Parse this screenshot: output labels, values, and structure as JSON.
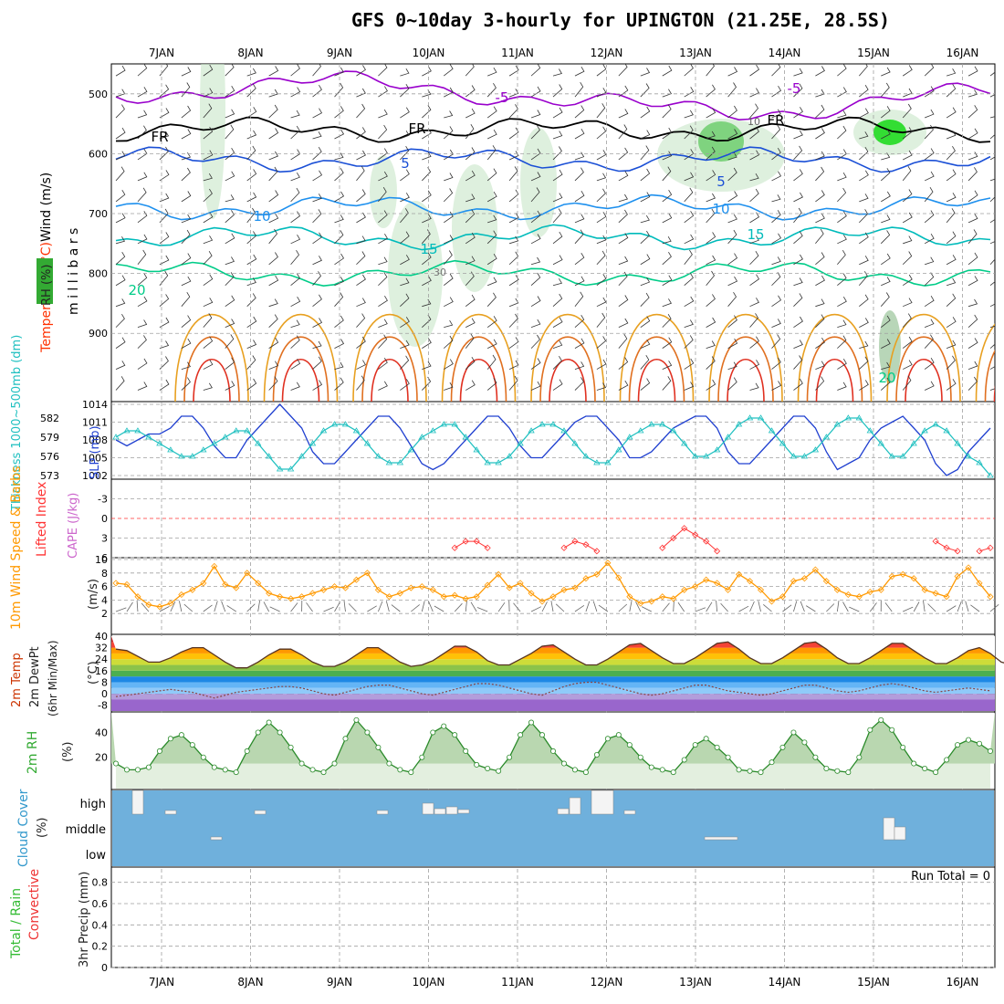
{
  "title": "GFS 0~10day 3-hourly for UPINGTON (21.25E, 28.5S)",
  "colors": {
    "grid": "#a0a0a0",
    "wind": "#000000",
    "temp": "#ff3000",
    "rh": "#33cc33",
    "thickness": "#20c0c0",
    "slp": "#2040d0",
    "cape": "#cc66cc",
    "li": "#ff3333",
    "wind10": "#ff9900",
    "cloud": "#6fb0dc",
    "total": "#33bb33",
    "convective": "#ee3333"
  },
  "chart_data": [
    {
      "id": "upper_air",
      "type": "contour",
      "ylabels": [
        {
          "text": "Wind (m/s)",
          "color": "#000000"
        },
        {
          "text": "Temperature (°C)",
          "color": "#ff3000"
        },
        {
          "text": "m i l l i b a r s",
          "color": "#000000"
        },
        {
          "text": "RH (%)",
          "color": "#33aa33"
        }
      ],
      "yticks": [
        500,
        600,
        700,
        800,
        900
      ],
      "dates": [
        "7JAN",
        "8JAN",
        "9JAN",
        "10JAN",
        "11JAN",
        "12JAN",
        "13JAN",
        "14JAN",
        "15JAN",
        "16JAN"
      ],
      "labels": [
        "-5",
        "-5",
        "FR",
        "FR",
        "FR",
        "10",
        "5",
        "5",
        "10",
        "10",
        "15",
        "15",
        "20",
        "20",
        "30"
      ],
      "isotherm_levels": [
        {
          "label": "-5",
          "p": 505,
          "color": "#9900cc"
        },
        {
          "label": "FR",
          "p": 560,
          "color": "#000000"
        },
        {
          "label": "5",
          "p": 610,
          "color": "#1a4fd6"
        },
        {
          "label": "10",
          "p": 690,
          "color": "#1e90ee"
        },
        {
          "label": "15",
          "p": 740,
          "color": "#00bbbb"
        },
        {
          "label": "20",
          "p": 800,
          "color": "#00cc88"
        }
      ]
    },
    {
      "id": "slp_thickness",
      "type": "line",
      "ylabel_left": "Thickness 1000~500mb (dm)",
      "ylabel_right": "SLP (mb)",
      "yticks_thickness": [
        "582",
        "579",
        "576",
        "573"
      ],
      "yticks_slp": [
        "1014",
        "1011",
        "1008",
        "1005",
        "1002"
      ],
      "series": [
        {
          "name": "SLP (mb)",
          "values": [
            1008,
            1007,
            1008,
            1009,
            1009,
            1010,
            1012,
            1012,
            1010,
            1007,
            1005,
            1005,
            1008,
            1010,
            1012,
            1014,
            1012,
            1010,
            1006,
            1004,
            1004,
            1006,
            1008,
            1010,
            1012,
            1012,
            1010,
            1007,
            1004,
            1003,
            1004,
            1006,
            1008,
            1010,
            1012,
            1012,
            1010,
            1007,
            1005,
            1005,
            1007,
            1009,
            1011,
            1012,
            1012,
            1010,
            1008,
            1005,
            1005,
            1006,
            1008,
            1010,
            1011,
            1012,
            1012,
            1010,
            1006,
            1004,
            1004,
            1006,
            1008,
            1010,
            1012,
            1012,
            1010,
            1006,
            1003,
            1004,
            1005,
            1008,
            1010,
            1011,
            1012,
            1010,
            1008,
            1004,
            1002,
            1003,
            1006,
            1008,
            1010
          ]
        },
        {
          "name": "Thickness (dm)",
          "values": [
            579,
            580,
            580,
            579,
            578,
            577,
            576,
            576,
            577,
            578,
            579,
            580,
            580,
            578,
            576,
            574,
            574,
            576,
            578,
            580,
            581,
            581,
            580,
            578,
            576,
            575,
            575,
            577,
            579,
            580,
            581,
            581,
            579,
            577,
            575,
            575,
            576,
            578,
            580,
            581,
            581,
            580,
            578,
            576,
            575,
            575,
            577,
            579,
            580,
            581,
            581,
            580,
            578,
            576,
            576,
            577,
            579,
            581,
            582,
            582,
            580,
            578,
            576,
            576,
            577,
            579,
            581,
            582,
            582,
            580,
            578,
            576,
            576,
            578,
            580,
            581,
            580,
            578,
            576,
            575,
            573
          ]
        }
      ]
    },
    {
      "id": "cape_li",
      "type": "line",
      "ylabel_left": "Lifted Index",
      "ylabel_right": "CAPE (J/kg)",
      "yticks": [
        "-3",
        "0",
        "3",
        "6"
      ],
      "series": [
        {
          "name": "Lifted Index",
          "values": [
            null,
            null,
            null,
            null,
            null,
            null,
            null,
            null,
            null,
            null,
            null,
            null,
            null,
            null,
            null,
            null,
            null,
            null,
            null,
            null,
            null,
            null,
            null,
            null,
            null,
            null,
            null,
            null,
            null,
            null,
            null,
            4.5,
            3.5,
            3.5,
            4.5,
            null,
            null,
            null,
            null,
            null,
            null,
            4.5,
            3.5,
            4,
            5,
            null,
            null,
            null,
            null,
            null,
            4.5,
            3,
            1.5,
            2.5,
            3.5,
            5,
            null,
            null,
            null,
            null,
            null,
            null,
            null,
            null,
            null,
            null,
            null,
            null,
            null,
            null,
            null,
            null,
            null,
            null,
            null,
            3.5,
            4.5,
            5,
            null,
            5,
            4.5
          ]
        }
      ]
    },
    {
      "id": "wind10m",
      "type": "line",
      "ylabel_left": "10m Wind Speed & Barbs",
      "ylabel_right": "(m/s)",
      "yticks": [
        "10",
        "8",
        "6",
        "4",
        "2"
      ],
      "series": [
        {
          "name": "10m Wind Speed",
          "values": [
            6.5,
            6.3,
            4.5,
            3.3,
            3,
            3.5,
            4.8,
            5.5,
            6.5,
            9,
            6.3,
            5.8,
            8,
            6.5,
            5,
            4.5,
            4.2,
            4.5,
            5,
            5.5,
            6,
            5.8,
            7,
            8,
            5.5,
            4.5,
            5,
            5.8,
            6,
            5.5,
            4.5,
            4.7,
            4.2,
            4.5,
            6.2,
            7.8,
            5.8,
            6.5,
            5,
            3.8,
            4.5,
            5.5,
            5.8,
            7.2,
            7.8,
            9.5,
            7.3,
            4.5,
            3.5,
            3.8,
            4.5,
            4.2,
            5.5,
            6,
            7,
            6.5,
            5.5,
            7.8,
            6.8,
            5.5,
            3.8,
            4.5,
            6.8,
            7.2,
            8.5,
            6.8,
            5.5,
            4.8,
            4.5,
            5.2,
            5.5,
            7.5,
            7.8,
            7.2,
            5.5,
            5,
            4.5,
            7.5,
            8.8,
            6.5,
            4.5
          ]
        }
      ]
    },
    {
      "id": "temp2m",
      "type": "area",
      "ylabel": "2m Temp 2m DewPt (6hr Min/Max) (°C)",
      "yticks": [
        "40",
        "32",
        "24",
        "16",
        "8",
        "0",
        "-8"
      ],
      "series": [
        {
          "name": "2m Temp",
          "values": [
            31,
            30,
            26,
            22,
            22,
            25,
            29,
            32,
            32,
            27,
            22,
            18,
            18,
            22,
            27,
            31,
            31,
            27,
            22,
            19,
            19,
            22,
            27,
            32,
            32,
            27,
            22,
            19,
            20,
            23,
            28,
            33,
            33,
            29,
            23,
            20,
            20,
            24,
            28,
            33,
            34,
            29,
            24,
            20,
            20,
            24,
            29,
            34,
            35,
            30,
            25,
            21,
            21,
            25,
            30,
            35,
            36,
            31,
            25,
            21,
            21,
            25,
            30,
            35,
            36,
            31,
            25,
            21,
            21,
            25,
            30,
            35,
            35,
            30,
            25,
            21,
            21,
            25,
            30,
            32,
            28,
            22,
            20
          ]
        },
        {
          "name": "2m DewPt",
          "values": [
            -2,
            -1,
            0,
            1,
            2,
            3,
            2,
            1,
            -1,
            -3,
            -1,
            1,
            2,
            3,
            4,
            5,
            5,
            4,
            2,
            0,
            -1,
            1,
            3,
            5,
            6,
            6,
            4,
            2,
            0,
            -1,
            1,
            3,
            5,
            7,
            7,
            6,
            4,
            2,
            0,
            -1,
            2,
            5,
            7,
            8,
            8,
            6,
            4,
            2,
            0,
            -1,
            0,
            2,
            4,
            6,
            6,
            4,
            2,
            1,
            0,
            -1,
            0,
            2,
            4,
            6,
            6,
            4,
            2,
            1,
            2,
            4,
            6,
            7,
            6,
            4,
            2,
            1,
            2,
            3,
            4,
            3,
            2
          ]
        }
      ]
    },
    {
      "id": "rh2m",
      "type": "area",
      "ylabel": "2m RH",
      "ylabel_right": "(%)",
      "yticks": [
        "40",
        "20"
      ],
      "series": [
        {
          "name": "2m RH",
          "values": [
            15,
            10,
            10,
            12,
            25,
            35,
            38,
            30,
            20,
            12,
            10,
            8,
            25,
            40,
            48,
            40,
            28,
            15,
            10,
            8,
            15,
            35,
            50,
            40,
            28,
            15,
            10,
            8,
            20,
            40,
            45,
            38,
            25,
            14,
            11,
            9,
            20,
            38,
            48,
            38,
            25,
            15,
            10,
            8,
            22,
            35,
            38,
            30,
            20,
            12,
            10,
            8,
            18,
            30,
            35,
            28,
            20,
            10,
            9,
            8,
            16,
            28,
            40,
            32,
            20,
            11,
            9,
            8,
            20,
            42,
            50,
            42,
            28,
            15,
            11,
            8,
            18,
            30,
            34,
            31,
            25
          ]
        }
      ]
    },
    {
      "id": "cloud",
      "type": "bar",
      "ylabel": "Cloud Cover",
      "ylabel_right": "(%)",
      "levels": [
        "high",
        "middle",
        "low"
      ]
    },
    {
      "id": "precip",
      "type": "bar",
      "ylabel": "3hr Precip (mm)",
      "legend": [
        "Total / Rain",
        "Convective"
      ],
      "yticks": [
        "0.8",
        "0.6",
        "0.4",
        "0.2",
        "0"
      ],
      "annotation": "Run Total = 0",
      "values": []
    }
  ]
}
